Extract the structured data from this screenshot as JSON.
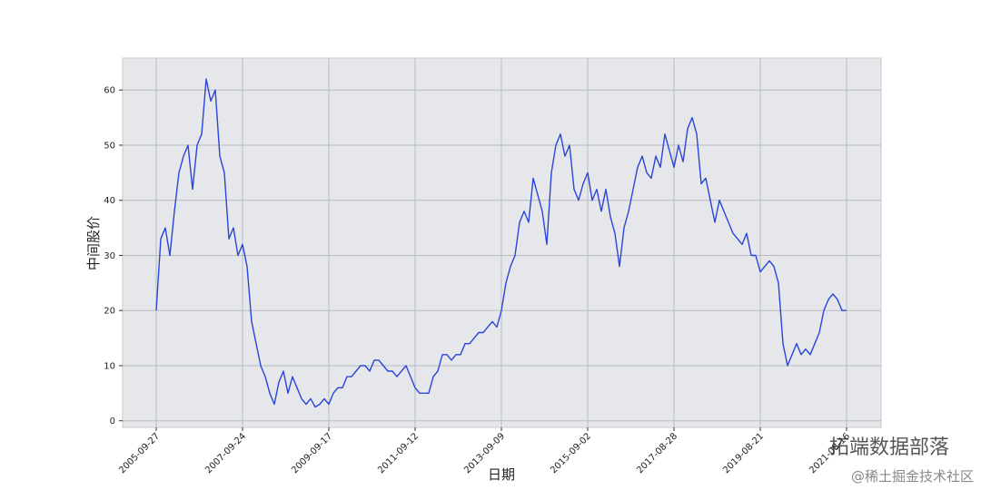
{
  "chart_data": {
    "type": "line",
    "xlabel": "日期",
    "ylabel": "中间股价",
    "watermarks": [
      "拓端数据部落",
      "@稀土掘金技术社区"
    ],
    "x": [
      0,
      25,
      50,
      75,
      100,
      125,
      150,
      175,
      200,
      225,
      250,
      275,
      300,
      325,
      350,
      375,
      400,
      425,
      450,
      475,
      500,
      525,
      550,
      575,
      600,
      625,
      650,
      675,
      700,
      725,
      750,
      775,
      800,
      825,
      850,
      875,
      900,
      925,
      950,
      975,
      1000,
      1025,
      1050,
      1075,
      1100,
      1125,
      1150,
      1175,
      1200,
      1225,
      1250,
      1275,
      1300,
      1325,
      1350,
      1375,
      1400,
      1425,
      1450,
      1475,
      1500,
      1525,
      1550,
      1575,
      1600,
      1625,
      1650,
      1675,
      1700,
      1725,
      1750,
      1775,
      1800,
      1825,
      1850,
      1875,
      1900,
      1925,
      1950,
      1975,
      2000,
      2025,
      2050,
      2075,
      2100,
      2125,
      2150,
      2175,
      2200,
      2225,
      2250,
      2275,
      2300,
      2325,
      2350,
      2375,
      2400,
      2425,
      2450,
      2475,
      2500,
      2525,
      2550,
      2575,
      2600,
      2625,
      2650,
      2675,
      2700,
      2725,
      2750,
      2775,
      2800,
      2825,
      2850,
      2875,
      2900,
      2925,
      2950,
      2975,
      3000,
      3025,
      3050,
      3075,
      3100,
      3125,
      3150,
      3175,
      3200,
      3225,
      3250,
      3275,
      3300,
      3325,
      3350,
      3375,
      3400,
      3425,
      3450,
      3475,
      3500,
      3525,
      3550,
      3575,
      3600,
      3625,
      3650,
      3675,
      3700,
      3725,
      3750,
      3775,
      3800
    ],
    "series": [
      {
        "name": "中间股价",
        "color": "#2a45d8",
        "values": [
          20,
          33,
          35,
          30,
          38,
          45,
          48,
          50,
          42,
          50,
          52,
          62,
          58,
          60,
          48,
          45,
          33,
          35,
          30,
          32,
          28,
          18,
          14,
          10,
          8,
          5,
          3,
          7,
          9,
          5,
          8,
          6,
          4,
          3,
          4,
          2.5,
          3,
          4,
          3,
          5,
          6,
          6,
          8,
          8,
          9,
          10,
          10,
          9,
          11,
          11,
          10,
          9,
          9,
          8,
          9,
          10,
          8,
          6,
          5,
          5,
          5,
          8,
          9,
          12,
          12,
          11,
          12,
          12,
          14,
          14,
          15,
          16,
          16,
          17,
          18,
          17,
          20,
          25,
          28,
          30,
          36,
          38,
          36,
          44,
          41,
          38,
          32,
          45,
          50,
          52,
          48,
          50,
          42,
          40,
          43,
          45,
          40,
          42,
          38,
          42,
          37,
          34,
          28,
          35,
          38,
          42,
          46,
          48,
          45,
          44,
          48,
          46,
          52,
          49,
          46,
          50,
          47,
          53,
          55,
          52,
          43,
          44,
          40,
          36,
          40,
          38,
          36,
          34,
          33,
          32,
          34,
          30,
          30,
          27,
          28,
          29,
          28,
          25,
          14,
          10,
          12,
          14,
          12,
          13,
          12,
          14,
          16,
          20,
          22,
          23,
          22,
          20,
          20
        ]
      }
    ],
    "xlim": [
      -185,
      3990
    ],
    "xticks": [
      {
        "value": 0,
        "label": "2005-09-27"
      },
      {
        "value": 475,
        "label": "2007-09-24"
      },
      {
        "value": 950,
        "label": "2009-09-17"
      },
      {
        "value": 1425,
        "label": "2011-09-12"
      },
      {
        "value": 1900,
        "label": "2013-09-09"
      },
      {
        "value": 2375,
        "label": "2015-09-02"
      },
      {
        "value": 2850,
        "label": "2017-08-28"
      },
      {
        "value": 3325,
        "label": "2019-08-21"
      },
      {
        "value": 3800,
        "label": "2021-08-16"
      }
    ],
    "ylim": [
      -1.2,
      65.8
    ],
    "yticks": [
      0,
      10,
      20,
      30,
      40,
      50,
      60
    ],
    "grid": true,
    "background": "#e5e7ea"
  }
}
